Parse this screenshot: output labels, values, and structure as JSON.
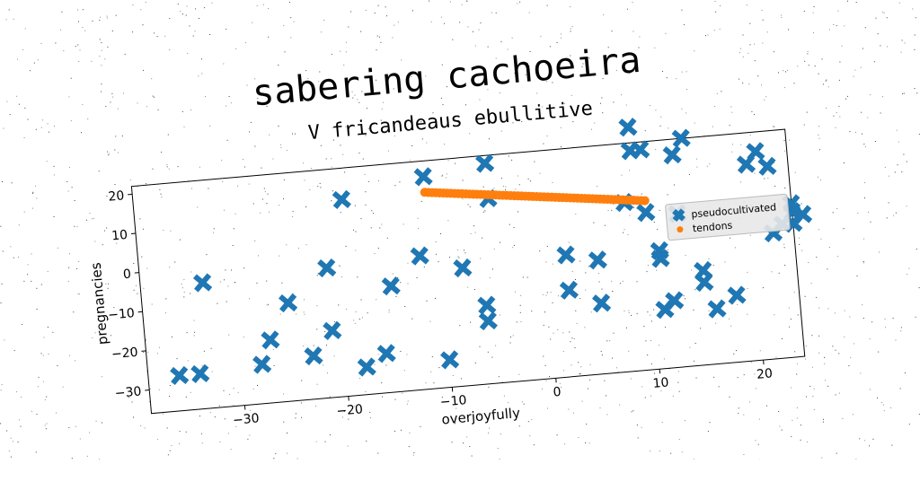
{
  "title": "sabering cachoeira",
  "chart_data": {
    "type": "scatter",
    "title": "V fricandeaus ebullitive",
    "xlabel": "overjoyfully",
    "ylabel": "pregnancies",
    "xlim": [
      -39,
      24
    ],
    "ylim": [
      -36,
      22
    ],
    "xticks": [
      "−30",
      "−20",
      "−10",
      "0",
      "10",
      "20"
    ],
    "yticks": [
      "20",
      "10",
      "0",
      "−10",
      "−20",
      "−30"
    ],
    "legend_position": "right",
    "series": [
      {
        "name": "pseudocultivated",
        "marker": "x",
        "color": "#1f77b4",
        "points": [
          [
            -36,
            -27
          ],
          [
            -34,
            -27
          ],
          [
            -33,
            -4
          ],
          [
            -28,
            -26
          ],
          [
            -27,
            -20
          ],
          [
            -25,
            -11
          ],
          [
            -23,
            -25
          ],
          [
            -21,
            -19
          ],
          [
            -21,
            -3
          ],
          [
            -19,
            14
          ],
          [
            -18,
            -29
          ],
          [
            -16,
            -26
          ],
          [
            -15,
            -9
          ],
          [
            -12,
            -2
          ],
          [
            -11,
            18
          ],
          [
            -10,
            -29
          ],
          [
            -8,
            -6
          ],
          [
            -6,
            -16
          ],
          [
            -6,
            -20
          ],
          [
            -5,
            20
          ],
          [
            -5,
            11
          ],
          [
            2,
            -5
          ],
          [
            2,
            -14
          ],
          [
            5,
            -7
          ],
          [
            5,
            -18
          ],
          [
            8,
            7
          ],
          [
            9,
            26
          ],
          [
            9,
            20
          ],
          [
            10,
            20
          ],
          [
            10,
            4
          ],
          [
            11,
            -21
          ],
          [
            11,
            -6
          ],
          [
            11,
            -8
          ],
          [
            12,
            -19
          ],
          [
            13,
            18
          ],
          [
            13,
            3
          ],
          [
            14,
            22
          ],
          [
            15,
            -12
          ],
          [
            15,
            -15
          ],
          [
            16,
            -22
          ],
          [
            18,
            -19
          ],
          [
            20,
            14
          ],
          [
            21,
            17
          ],
          [
            22,
            -4
          ],
          [
            22,
            13
          ],
          [
            23,
            -2
          ],
          [
            24,
            3
          ],
          [
            24,
            1
          ],
          [
            24,
            -2
          ],
          [
            25,
            0
          ]
        ]
      },
      {
        "name": "tendons",
        "marker": "o",
        "color": "#ff7f0e",
        "x_start": -11,
        "x_end": 10,
        "y_start": 14,
        "y_end": 7,
        "count": 60
      }
    ]
  }
}
